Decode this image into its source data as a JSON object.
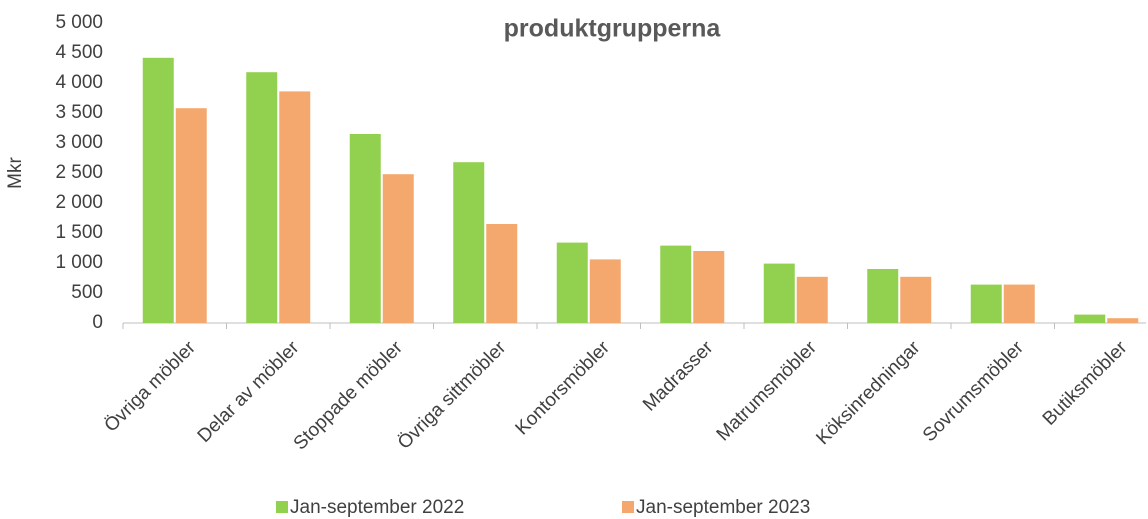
{
  "chart_data": {
    "type": "bar",
    "title": "produktgrupperna",
    "y_label": "Mkr",
    "categories": [
      "Övriga möbler",
      "Delar av möbler",
      "Stoppade möbler",
      "Övriga sittmöbler",
      "Kontorsmöbler",
      "Madrasser",
      "Matrumsmöbler",
      "Köksinredningar",
      "Sovrumsmöbler",
      "Butiksmöbler"
    ],
    "series": [
      {
        "name": "Jan-september 2022",
        "color": "#92d050",
        "values": [
          4420,
          4180,
          3150,
          2680,
          1340,
          1290,
          990,
          900,
          640,
          140
        ]
      },
      {
        "name": "Jan-september 2023",
        "color": "#f4a86e",
        "values": [
          3580,
          3860,
          2480,
          1650,
          1060,
          1200,
          770,
          770,
          640,
          80
        ]
      }
    ],
    "ylim": [
      0,
      5000
    ],
    "yticks": [
      0,
      500,
      {
        "value": 1000,
        "label": "1 000"
      },
      {
        "value": 1500,
        "label": "1 500"
      },
      {
        "value": 2000,
        "label": "2 000"
      },
      {
        "value": 2500,
        "label": "2 500"
      },
      {
        "value": 3000,
        "label": "3 000"
      },
      {
        "value": 3500,
        "label": "3 500"
      },
      {
        "value": 4000,
        "label": "4 000"
      },
      {
        "value": 4500,
        "label": "4 500"
      },
      {
        "value": 5000,
        "label": "5 000"
      }
    ],
    "grid": false,
    "legend": "bottom"
  }
}
